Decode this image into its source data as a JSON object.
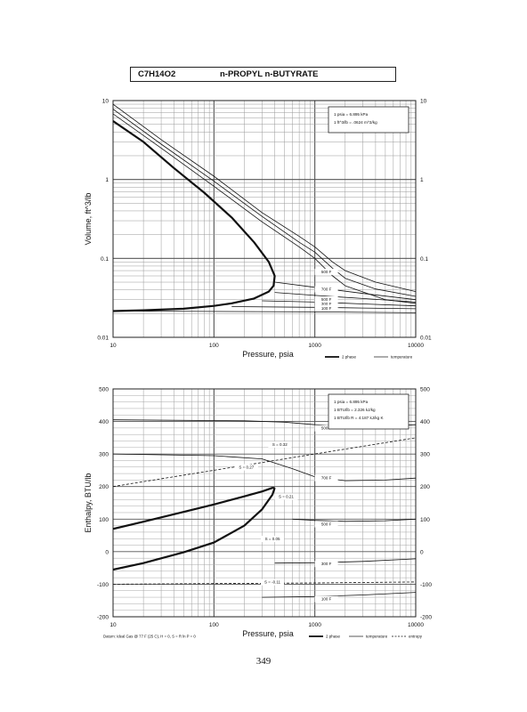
{
  "header": {
    "formula": "C7H14O2",
    "compound": "n-PROPYL n-BUTYRATE"
  },
  "page_number": "349",
  "chart_data": [
    {
      "type": "line",
      "xscale": "log",
      "yscale": "log",
      "xlim": [
        10,
        10000
      ],
      "ylim": [
        0.01,
        10
      ],
      "xlabel": "Pressure,  psia",
      "ylabel": "Volume, ft^3/lb",
      "x_ticks": [
        "10",
        "100",
        "1000",
        "10000"
      ],
      "y_ticks": [
        "0.01",
        "0.1",
        "1",
        "10"
      ],
      "y_ticks_right": [
        "0.01",
        "0.1",
        "1",
        "10"
      ],
      "note_lines": [
        "1 psia  =  6.895 kPa",
        "1 ft^3/lb  =  .0624 m^3/kg"
      ],
      "legend": {
        "placement": "bottom-right",
        "entries": [
          "2 phase",
          "temperature"
        ]
      },
      "grid": true,
      "series": [
        {
          "name": "2 phase",
          "style": "thick",
          "x": [
            10,
            20,
            40,
            80,
            150,
            250,
            350,
            400,
            390,
            350,
            250,
            150,
            100,
            50,
            20,
            10
          ],
          "y": [
            5.5,
            3,
            1.4,
            0.68,
            0.33,
            0.16,
            0.09,
            0.06,
            0.045,
            0.038,
            0.031,
            0.027,
            0.025,
            0.023,
            0.022,
            0.0215
          ]
        },
        {
          "style": "thin",
          "x": [
            10,
            30,
            100,
            300,
            700,
            1000,
            1500,
            2000,
            5000,
            10000
          ],
          "y": [
            6.8,
            2.5,
            0.82,
            0.29,
            0.14,
            0.1,
            0.06,
            0.045,
            0.03,
            0.027
          ]
        },
        {
          "style": "thin",
          "x": [
            10,
            30,
            100,
            300,
            700,
            1000,
            1500,
            2000,
            4000,
            10000
          ],
          "y": [
            7.8,
            2.8,
            0.95,
            0.34,
            0.16,
            0.12,
            0.075,
            0.056,
            0.041,
            0.033
          ]
        },
        {
          "style": "thin",
          "x": [
            10,
            30,
            100,
            300,
            700,
            1000,
            1500,
            2000,
            4000,
            10000
          ],
          "y": [
            9,
            3.2,
            1.1,
            0.38,
            0.19,
            0.14,
            0.09,
            0.07,
            0.05,
            0.038
          ]
        },
        {
          "style": "thin",
          "x": [
            400,
            1000,
            3000,
            10000
          ],
          "y": [
            0.05,
            0.043,
            0.036,
            0.03
          ]
        },
        {
          "style": "thin",
          "x": [
            400,
            1000,
            3000,
            10000
          ],
          "y": [
            0.037,
            0.034,
            0.031,
            0.028
          ]
        },
        {
          "style": "thin",
          "x": [
            300,
            1000,
            3000,
            10000
          ],
          "y": [
            0.029,
            0.028,
            0.0265,
            0.025
          ]
        },
        {
          "style": "thin",
          "x": [
            150,
            1000,
            3000,
            10000
          ],
          "y": [
            0.0245,
            0.024,
            0.0235,
            0.023
          ]
        },
        {
          "style": "thin",
          "x": [
            10,
            1000,
            10000
          ],
          "y": [
            0.0215,
            0.021,
            0.0205
          ]
        }
      ],
      "annotations": [
        {
          "text": "500 F",
          "x": 1300,
          "y": 0.065
        },
        {
          "text": "700 F",
          "x": 1300,
          "y": 0.039
        },
        {
          "text": "500 F",
          "x": 1300,
          "y": 0.029
        },
        {
          "text": "300 F",
          "x": 1300,
          "y": 0.0255
        },
        {
          "text": "100 F",
          "x": 1300,
          "y": 0.0225
        }
      ]
    },
    {
      "type": "line",
      "xscale": "log",
      "yscale": "linear",
      "xlim": [
        10,
        10000
      ],
      "ylim": [
        -200,
        500
      ],
      "xlabel": "Pressure,  psia",
      "ylabel": "Enthalpy, BTU/lb",
      "x_ticks": [
        "10",
        "100",
        "1000",
        "10000"
      ],
      "y_ticks": [
        "-200",
        "-100",
        "0",
        "100",
        "200",
        "300",
        "400",
        "500"
      ],
      "y_ticks_right": [
        "-200",
        "-100",
        "0",
        "100",
        "200",
        "300",
        "400",
        "500"
      ],
      "note_lines": [
        "1 psia  =  6.895 kPa",
        "1 BTU/lb  =  2.326 kJ/kg",
        "1 BTU/lb R  =  4.187 kJ/kg K"
      ],
      "footnote": "Datum: Ideal Gas @ 77 F (25 C),  H = 0,  S = R ln P = 0",
      "legend": {
        "placement": "bottom-right",
        "entries": [
          "2 phase",
          "temperature",
          "entropy"
        ]
      },
      "grid": true,
      "series": [
        {
          "name": "2 phase",
          "style": "thick",
          "x": [
            10,
            20,
            50,
            100,
            200,
            300,
            380,
            400
          ],
          "y": [
            70,
            92,
            122,
            145,
            170,
            185,
            196,
            196
          ]
        },
        {
          "name": "2 phase",
          "style": "thick",
          "x": [
            10,
            20,
            50,
            100,
            200,
            300,
            380,
            400
          ],
          "y": [
            -55,
            -35,
            -2,
            28,
            80,
            130,
            175,
            196
          ]
        },
        {
          "style": "thin",
          "x": [
            10,
            200,
            500,
            1000,
            2000,
            5000,
            10000
          ],
          "y": [
            405,
            402,
            398,
            390,
            385,
            386,
            390
          ]
        },
        {
          "style": "thin",
          "x": [
            10,
            100,
            300,
            600,
            1000,
            2000,
            5000,
            10000
          ],
          "y": [
            300,
            295,
            285,
            255,
            230,
            218,
            220,
            226
          ]
        },
        {
          "style": "thin",
          "x": [
            600,
            1000,
            2000,
            5000,
            10000
          ],
          "y": [
            100,
            96,
            93,
            95,
            100
          ]
        },
        {
          "style": "thin",
          "x": [
            400,
            1000,
            3000,
            10000
          ],
          "y": [
            -35,
            -34,
            -30,
            -22
          ]
        },
        {
          "style": "thin",
          "x": [
            300,
            1000,
            3000,
            10000
          ],
          "y": [
            -140,
            -138,
            -133,
            -125
          ]
        },
        {
          "style": "dashed",
          "x": [
            10,
            100,
            1000,
            10000
          ],
          "y": [
            200,
            250,
            300,
            350
          ]
        },
        {
          "style": "dashed",
          "x": [
            10,
            100,
            1000,
            10000
          ],
          "y": [
            -100,
            -98,
            -96,
            -93
          ]
        }
      ],
      "annotations": [
        {
          "text": "500 F",
          "x": 1300,
          "y": 375
        },
        {
          "text": "S = 0.32",
          "x": 450,
          "y": 325
        },
        {
          "text": "S = 0.27",
          "x": 210,
          "y": 255
        },
        {
          "text": "700 F",
          "x": 1300,
          "y": 222
        },
        {
          "text": "S = 0.21",
          "x": 520,
          "y": 165
        },
        {
          "text": "500 F",
          "x": 1300,
          "y": 80
        },
        {
          "text": "S = 0.05",
          "x": 380,
          "y": 35
        },
        {
          "text": "300 F",
          "x": 1300,
          "y": -42
        },
        {
          "text": "S = -0.11",
          "x": 380,
          "y": -98
        },
        {
          "text": "100 F",
          "x": 1300,
          "y": -150
        }
      ]
    }
  ]
}
